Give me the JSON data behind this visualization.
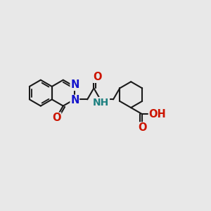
{
  "background_color": "#e8e8e8",
  "bond_color": "#1a1a1a",
  "bond_width": 1.5,
  "atom_colors": {
    "N": "#1414cc",
    "O": "#cc1400",
    "NH": "#1e8080",
    "C": "#1a1a1a"
  },
  "font_size": 10.5,
  "fig_width": 3.0,
  "fig_height": 3.0,
  "dpi": 100
}
